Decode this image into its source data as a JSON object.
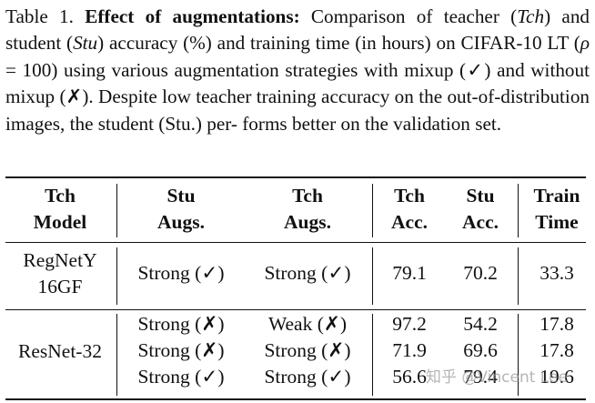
{
  "caption": {
    "label": "Table 1.",
    "title": "Effect of augmentations:",
    "t1": " Comparison of teacher (",
    "tch": "Tch",
    "t2": ")",
    "t3": "and student (",
    "stu": "Stu",
    "t4": ") accuracy (%) and training time (in hours) on",
    "t5": "CIFAR-10 LT (",
    "rho": "ρ",
    "t6": " = 100) using various augmentation strategies with",
    "t7": "mixup (✓) and without mixup (✗). Despite low teacher training",
    "t8": "accuracy on the out-of-distribution images, the student (Stu.) per-",
    "t9": "forms better on the validation set."
  },
  "table": {
    "headers": [
      [
        "Tch",
        "Model"
      ],
      [
        "Stu",
        "Augs."
      ],
      [
        "Tch",
        "Augs."
      ],
      [
        "Tch",
        "Acc."
      ],
      [
        "Stu",
        "Acc."
      ],
      [
        "Train",
        "Time"
      ]
    ],
    "group1": {
      "model": [
        "RegNetY",
        "16GF"
      ],
      "rows": [
        [
          "Strong (✓)",
          "Strong (✓)",
          "79.1",
          "70.2",
          "33.3"
        ]
      ]
    },
    "group2": {
      "model": "ResNet-32",
      "rows": [
        [
          "Strong (✗)",
          "Weak (✗)",
          "97.2",
          "54.2",
          "17.8"
        ],
        [
          "Strong (✗)",
          "Strong (✗)",
          "71.9",
          "69.6",
          "17.8"
        ],
        [
          "Strong (✓)",
          "Strong (✓)",
          "56.6",
          "79.4",
          "19.6"
        ]
      ]
    }
  },
  "watermark": "知乎 @Vincent Lee"
}
